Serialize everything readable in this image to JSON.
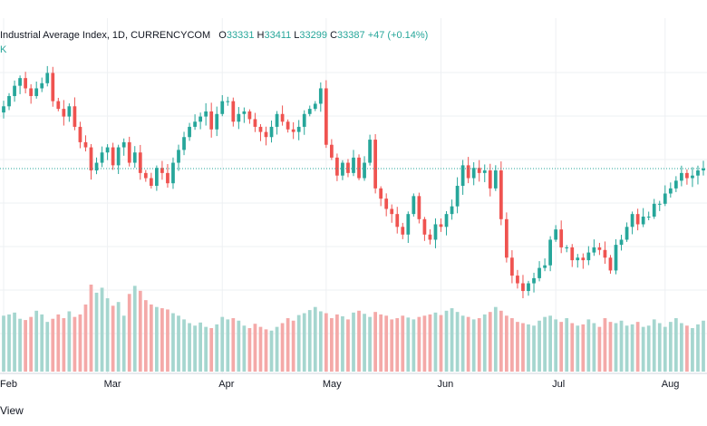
{
  "header": {
    "title": "Industrial Average Index, 1D, CURRENCYCOM",
    "o_label": "O",
    "o_value": "33331",
    "h_label": "H",
    "h_value": "33411",
    "l_label": "L",
    "l_value": "33299",
    "c_label": "C",
    "c_value": "33387",
    "change": "+47 (+0.14%)",
    "sub": "K"
  },
  "footer": {
    "label": "View"
  },
  "colors": {
    "up": "#26a69a",
    "down": "#ef5350",
    "up_vol": "#a5d6cf",
    "down_vol": "#f4a9a8",
    "grid": "#eef0f3",
    "price_line": "#26a69a"
  },
  "chart_data": {
    "type": "candlestick",
    "last_price": 33387,
    "ylim": [
      30100,
      35400
    ],
    "x_ticks": [
      {
        "label": "Feb",
        "index": 0
      },
      {
        "label": "Mar",
        "index": 19
      },
      {
        "label": "Apr",
        "index": 40
      },
      {
        "label": "May",
        "index": 59
      },
      {
        "label": "Jun",
        "index": 80
      },
      {
        "label": "Jul",
        "index": 101
      },
      {
        "label": "Aug",
        "index": 121
      }
    ],
    "closes": [
      34600,
      34800,
      35000,
      35150,
      34950,
      34800,
      34950,
      35050,
      35250,
      34700,
      34550,
      34400,
      34600,
      34200,
      33900,
      33800,
      33350,
      33500,
      33700,
      33800,
      33450,
      33800,
      33900,
      33500,
      33700,
      33300,
      33200,
      33050,
      33400,
      33300,
      33100,
      33500,
      33750,
      34000,
      34200,
      34300,
      34400,
      34500,
      34150,
      34450,
      34700,
      34700,
      34300,
      34450,
      34500,
      34350,
      34200,
      34100,
      34000,
      34200,
      34450,
      34300,
      34150,
      34100,
      34200,
      34450,
      34550,
      34650,
      34950,
      33850,
      33600,
      33250,
      33500,
      33300,
      33600,
      33200,
      33500,
      33950,
      33000,
      32800,
      32600,
      32500,
      32250,
      32100,
      32500,
      32850,
      32400,
      32100,
      32000,
      32300,
      32250,
      32500,
      32650,
      33050,
      33450,
      33200,
      33400,
      33300,
      33350,
      33000,
      33350,
      32400,
      31650,
      31300,
      31150,
      31000,
      31150,
      31250,
      31450,
      31500,
      32000,
      32200,
      31850,
      31850,
      31600,
      31650,
      31600,
      31750,
      31850,
      31800,
      31650,
      31400,
      31900,
      32000,
      32250,
      32500,
      32300,
      32450,
      32450,
      32700,
      32700,
      32900,
      33000,
      33150,
      33300,
      33200,
      33250,
      33350,
      33387
    ],
    "volumes": [
      90,
      92,
      95,
      85,
      83,
      88,
      98,
      92,
      80,
      85,
      92,
      86,
      97,
      88,
      92,
      108,
      140,
      127,
      135,
      118,
      106,
      112,
      90,
      125,
      138,
      130,
      115,
      108,
      104,
      102,
      100,
      94,
      90,
      84,
      78,
      74,
      79,
      72,
      70,
      76,
      88,
      84,
      86,
      82,
      74,
      70,
      77,
      72,
      68,
      66,
      72,
      78,
      86,
      82,
      91,
      94,
      99,
      104,
      97,
      94,
      86,
      92,
      89,
      84,
      95,
      98,
      93,
      88,
      96,
      92,
      90,
      84,
      86,
      90,
      87,
      84,
      88,
      90,
      92,
      95,
      91,
      98,
      102,
      96,
      90,
      88,
      84,
      86,
      92,
      96,
      104,
      98,
      90,
      86,
      80,
      78,
      76,
      74,
      82,
      88,
      90,
      84,
      80,
      86,
      78,
      74,
      76,
      84,
      78,
      72,
      86,
      80,
      78,
      82,
      74,
      76,
      80,
      72,
      74,
      84,
      78,
      72,
      80,
      86,
      78,
      74,
      70,
      76,
      82
    ]
  }
}
